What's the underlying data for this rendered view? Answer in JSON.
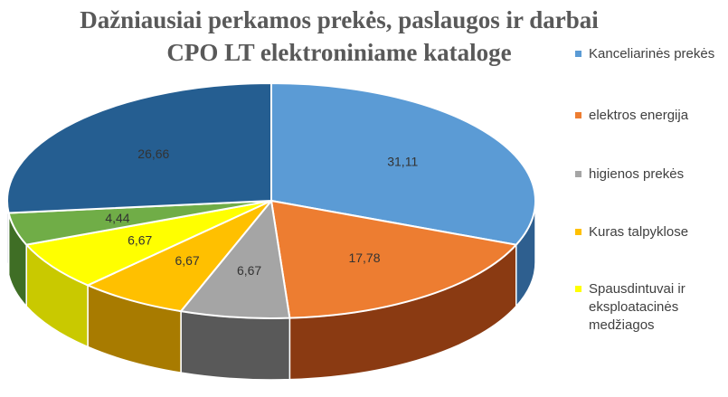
{
  "chart_data": {
    "type": "pie",
    "title": [
      "Dažniausiai perkamos prekės, paslaugos ir darbai",
      "CPO LT elektroniniame kataloge"
    ],
    "legend_position": "right",
    "slices": [
      {
        "label": "Kanceliarinės prekės",
        "value": 31.11,
        "value_label": "31,11",
        "color": "#5B9BD5",
        "side": "#2E5F8F",
        "in_legend": true
      },
      {
        "label": "elektros energija",
        "value": 17.78,
        "value_label": "17,78",
        "color": "#ED7D31",
        "side": "#8A3A12",
        "in_legend": true
      },
      {
        "label": "higienos prekės",
        "value": 6.67,
        "value_label": "6,67",
        "color": "#A5A5A5",
        "side": "#595959",
        "in_legend": true
      },
      {
        "label": "Kuras talpyklose",
        "value": 6.67,
        "value_label": "6,67",
        "color": "#FFC000",
        "side": "#A87B00",
        "in_legend": true
      },
      {
        "label": "Spausdintuvai ir eksploatacinės medžiagos",
        "value": 6.67,
        "value_label": "6,67",
        "color": "#FFFF00",
        "side": "#C9C900",
        "in_legend": true
      },
      {
        "label": "",
        "value": 4.44,
        "value_label": "4,44",
        "color": "#70AD47",
        "side": "#3F6E25",
        "in_legend": false
      },
      {
        "label": "",
        "value": 26.66,
        "value_label": "26,66",
        "color": "#255E91",
        "side": "#14324F",
        "in_legend": false
      }
    ]
  }
}
